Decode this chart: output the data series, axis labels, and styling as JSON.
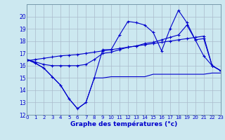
{
  "background_color": "#cce8f0",
  "grid_color": "#aabbcc",
  "line_color": "#0000cc",
  "xlabel": "Graphe des températures (°c)",
  "ylim": [
    12,
    21
  ],
  "xlim": [
    0,
    23
  ],
  "yticks": [
    12,
    13,
    14,
    15,
    16,
    17,
    18,
    19,
    20
  ],
  "xticks": [
    0,
    1,
    2,
    3,
    4,
    5,
    6,
    7,
    8,
    9,
    10,
    11,
    12,
    13,
    14,
    15,
    16,
    17,
    18,
    19,
    20,
    21,
    22,
    23
  ],
  "line1_x": [
    0,
    1,
    2,
    3,
    4,
    5,
    6,
    7,
    8,
    9,
    10,
    11,
    12,
    13,
    14,
    15,
    16,
    17,
    18,
    19,
    20,
    21,
    22,
    23
  ],
  "line1_y": [
    16.5,
    16.2,
    15.8,
    15.1,
    14.4,
    13.3,
    12.5,
    13.0,
    15.0,
    15.0,
    15.1,
    15.1,
    15.1,
    15.1,
    15.1,
    15.3,
    15.3,
    15.3,
    15.3,
    15.3,
    15.3,
    15.3,
    15.4,
    15.4
  ],
  "line2_x": [
    0,
    1,
    2,
    3,
    4,
    5,
    6,
    7,
    8,
    9,
    10,
    11,
    12,
    13,
    14,
    15,
    16,
    17,
    18,
    19,
    20,
    21,
    22,
    23
  ],
  "line2_y": [
    16.5,
    16.2,
    15.8,
    15.1,
    14.4,
    13.3,
    12.5,
    13.0,
    15.0,
    17.3,
    17.3,
    18.5,
    19.6,
    19.5,
    19.3,
    18.7,
    17.2,
    19.0,
    20.5,
    19.5,
    18.1,
    16.8,
    16.0,
    15.6
  ],
  "line3_x": [
    0,
    1,
    2,
    3,
    4,
    5,
    6,
    7,
    8,
    9,
    10,
    11,
    12,
    13,
    14,
    15,
    16,
    17,
    18,
    19,
    20,
    21,
    22,
    23
  ],
  "line3_y": [
    16.5,
    16.3,
    16.1,
    16.0,
    16.0,
    16.0,
    16.0,
    16.1,
    16.5,
    17.0,
    17.1,
    17.3,
    17.5,
    17.6,
    17.8,
    17.9,
    18.1,
    18.3,
    18.5,
    19.3,
    18.1,
    18.2,
    16.0,
    15.6
  ],
  "line4_x": [
    0,
    1,
    2,
    3,
    4,
    5,
    6,
    7,
    8,
    9,
    10,
    11,
    12,
    13,
    14,
    15,
    16,
    17,
    18,
    19,
    20,
    21,
    22,
    23
  ],
  "line4_y": [
    16.4,
    16.5,
    16.6,
    16.7,
    16.8,
    16.85,
    16.9,
    17.0,
    17.1,
    17.2,
    17.3,
    17.4,
    17.5,
    17.6,
    17.7,
    17.8,
    17.9,
    18.0,
    18.1,
    18.2,
    18.3,
    18.4,
    16.0,
    15.6
  ]
}
